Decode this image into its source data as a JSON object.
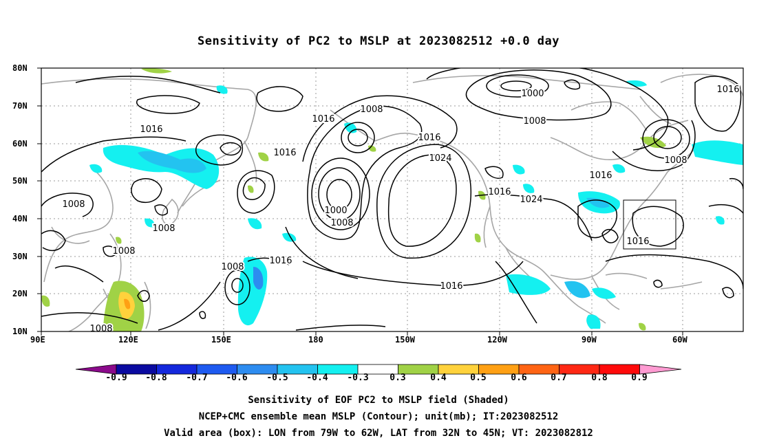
{
  "title": "Sensitivity of PC2 to MSLP at 2023082512 +0.0 day",
  "lat_labels": [
    "80N",
    "70N",
    "60N",
    "50N",
    "40N",
    "30N",
    "20N",
    "10N"
  ],
  "lon_labels": [
    "90E",
    "120E",
    "150E",
    "180",
    "150W",
    "120W",
    "90W",
    "60W"
  ],
  "colorbar": {
    "labels": [
      "-0.9",
      "-0.8",
      "-0.7",
      "-0.6",
      "-0.5",
      "-0.4",
      "-0.3",
      "0.3",
      "0.4",
      "0.5",
      "0.6",
      "0.7",
      "0.8",
      "0.9"
    ],
    "colors": [
      "#8b0a8b",
      "#0a0aa0",
      "#1428dc",
      "#1e5af0",
      "#2d8cf0",
      "#23c3f0",
      "#14f0f0",
      "#ffffff",
      "#a0d246",
      "#ffd23c",
      "#ffa014",
      "#ff6414",
      "#ff2814",
      "#ff0a0a",
      "#ff9bd2"
    ]
  },
  "contour_labels": [
    "1000",
    "1008",
    "1016",
    "1024"
  ],
  "captions": [
    "Sensitivity of EOF PC2 to MSLP field (Shaded)",
    "NCEP+CMC ensemble mean MSLP (Contour); unit(mb); IT:2023082512",
    "Valid area (box): LON from 79W to 62W, LAT from 32N to 45N; VT: 2023082812"
  ]
}
